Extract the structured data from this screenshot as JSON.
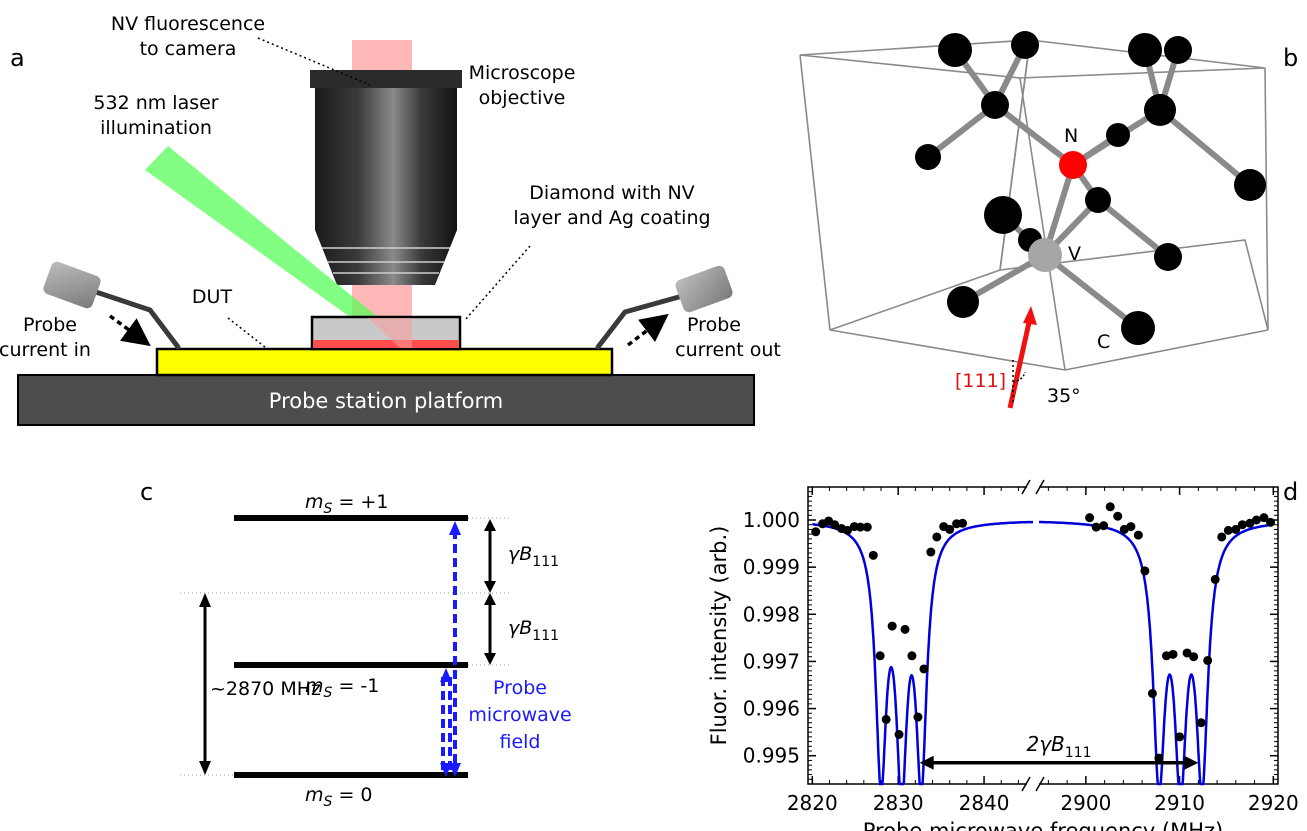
{
  "panels": {
    "a": "a",
    "b": "b",
    "c": "c",
    "d": "d"
  },
  "setup": {
    "nv_fluorescence_line1": "NV fluorescence",
    "nv_fluorescence_line2": "to camera",
    "objective_line1": "Microscope",
    "objective_line2": "objective",
    "laser_line1": "532 nm laser",
    "laser_line2": "illumination",
    "diamond_line1": "Diamond with NV",
    "diamond_line2": "layer and Ag coating",
    "dut": "DUT",
    "probe_in_line1": "Probe",
    "probe_in_line2": "current in",
    "probe_out_line1": "Probe",
    "probe_out_line2": "current out",
    "platform": "Probe station platform",
    "colors": {
      "laser": "#4dff4d",
      "fluorescence": "#ff9a9a",
      "dut": "#ffff00",
      "platform": "#4d4d4d",
      "nv_layer": "#ff4d4d"
    }
  },
  "crystal": {
    "n_label": "N",
    "v_label": "V",
    "c_label": "C",
    "axis_label": "[111]",
    "angle_label": "35°",
    "colors": {
      "nitrogen": "#ff0000",
      "vacancy": "#a6a6a6",
      "carbon": "#000000",
      "axis": "#ee1111"
    }
  },
  "levels": {
    "ms_plus_prefix": "m",
    "ms_plus_sub": "S",
    "ms_plus_value": " = +1",
    "ms_minus_prefix": "m",
    "ms_minus_sub": "S",
    "ms_minus_value": " = -1",
    "ms_zero_prefix": "m",
    "ms_zero_sub": "S",
    "ms_zero_value": " = 0",
    "gamma": "γB",
    "gamma_sub": "111",
    "zero_field": "~2870 MHz",
    "probe_line1": "Probe",
    "probe_line2": "microwave",
    "probe_line3": "field"
  },
  "chart_data": {
    "type": "scatter",
    "xlabel": "Probe microwave frequency (MHz)",
    "ylabel": "Fluor. intensity (arb.)",
    "x_ticks": [
      2820,
      2830,
      2840,
      2900,
      2910,
      2920
    ],
    "y_ticks": [
      1.0,
      0.999,
      0.998,
      0.997,
      0.996,
      0.995
    ],
    "y_tick_labels": [
      "1.000",
      "0.999",
      "0.998",
      "0.997",
      "0.996",
      "0.995"
    ],
    "axis_break": [
      2845,
      2895
    ],
    "ylim": [
      0.9944,
      1.0007
    ],
    "annotation": "2γB",
    "annotation_sub": "111",
    "annotation_span": [
      2832.5,
      2912.0
    ],
    "fit_color": "#0000dd",
    "fit_dips": [
      {
        "x0": 2828.0,
        "depth": 0.0052
      },
      {
        "x0": 2830.4,
        "depth": 0.0051
      },
      {
        "x0": 2832.7,
        "depth": 0.0052
      },
      {
        "x0": 2907.8,
        "depth": 0.0052
      },
      {
        "x0": 2910.1,
        "depth": 0.005
      },
      {
        "x0": 2912.4,
        "depth": 0.0052
      }
    ],
    "fit_width": 0.75,
    "points": [
      [
        2820.4,
        0.99975
      ],
      [
        2821.2,
        0.99992
      ],
      [
        2821.9,
        0.99998
      ],
      [
        2822.6,
        0.9999
      ],
      [
        2823.4,
        0.99982
      ],
      [
        2824.1,
        0.99978
      ],
      [
        2824.9,
        0.99986
      ],
      [
        2825.6,
        0.99985
      ],
      [
        2826.4,
        0.99985
      ],
      [
        2827.1,
        0.99925
      ],
      [
        2827.9,
        0.99712
      ],
      [
        2828.6,
        0.99577
      ],
      [
        2829.3,
        0.99775
      ],
      [
        2830.1,
        0.99545
      ],
      [
        2830.8,
        0.99768
      ],
      [
        2831.6,
        0.99712
      ],
      [
        2832.3,
        0.99582
      ],
      [
        2833.0,
        0.99684
      ],
      [
        2833.8,
        0.99932
      ],
      [
        2834.5,
        0.99964
      ],
      [
        2835.3,
        0.99986
      ],
      [
        2836.0,
        0.9998
      ],
      [
        2836.8,
        0.99992
      ],
      [
        2837.5,
        0.99993
      ],
      [
        2900.4,
        1.00005
      ],
      [
        2901.1,
        0.99985
      ],
      [
        2901.9,
        0.99988
      ],
      [
        2902.6,
        1.00028
      ],
      [
        2903.4,
        1.00008
      ],
      [
        2904.1,
        0.9998
      ],
      [
        2904.8,
        0.99986
      ],
      [
        2905.6,
        0.99968
      ],
      [
        2906.3,
        0.99892
      ],
      [
        2907.1,
        0.99632
      ],
      [
        2907.8,
        0.99495
      ],
      [
        2908.6,
        0.99712
      ],
      [
        2909.3,
        0.99715
      ],
      [
        2910.0,
        0.9954
      ],
      [
        2910.8,
        0.99718
      ],
      [
        2911.5,
        0.9971
      ],
      [
        2912.3,
        0.9957
      ],
      [
        2913.0,
        0.99702
      ],
      [
        2913.8,
        0.99874
      ],
      [
        2914.5,
        0.99964
      ],
      [
        2915.2,
        0.99978
      ],
      [
        2916.0,
        0.9998
      ],
      [
        2916.7,
        0.9999
      ],
      [
        2917.5,
        0.99993
      ],
      [
        2918.2,
        1.0
      ],
      [
        2919.0,
        1.00005
      ],
      [
        2919.7,
        0.99995
      ]
    ]
  }
}
